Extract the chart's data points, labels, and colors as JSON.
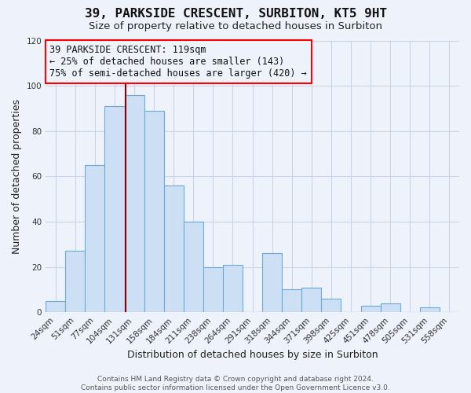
{
  "title": "39, PARKSIDE CRESCENT, SURBITON, KT5 9HT",
  "subtitle": "Size of property relative to detached houses in Surbiton",
  "xlabel": "Distribution of detached houses by size in Surbiton",
  "ylabel": "Number of detached properties",
  "footer_line1": "Contains HM Land Registry data © Crown copyright and database right 2024.",
  "footer_line2": "Contains public sector information licensed under the Open Government Licence v3.0.",
  "categories": [
    "24sqm",
    "51sqm",
    "77sqm",
    "104sqm",
    "131sqm",
    "158sqm",
    "184sqm",
    "211sqm",
    "238sqm",
    "264sqm",
    "291sqm",
    "318sqm",
    "344sqm",
    "371sqm",
    "398sqm",
    "425sqm",
    "451sqm",
    "478sqm",
    "505sqm",
    "531sqm",
    "558sqm"
  ],
  "values": [
    5,
    27,
    65,
    91,
    96,
    89,
    56,
    40,
    20,
    21,
    0,
    26,
    10,
    11,
    6,
    0,
    3,
    4,
    0,
    2,
    0
  ],
  "bar_color": "#cddff5",
  "bar_edge_color": "#6aaad4",
  "ylim": [
    0,
    120
  ],
  "yticks": [
    0,
    20,
    40,
    60,
    80,
    100,
    120
  ],
  "property_label": "39 PARKSIDE CRESCENT: 119sqm",
  "annotation_line1": "← 25% of detached houses are smaller (143)",
  "annotation_line2": "75% of semi-detached houses are larger (420) →",
  "background_color": "#eef2fa",
  "grid_color": "#c8d4e8",
  "title_fontsize": 11.5,
  "subtitle_fontsize": 9.5,
  "label_fontsize": 9,
  "tick_fontsize": 7.5,
  "annotation_fontsize": 8.5,
  "footer_fontsize": 6.5
}
